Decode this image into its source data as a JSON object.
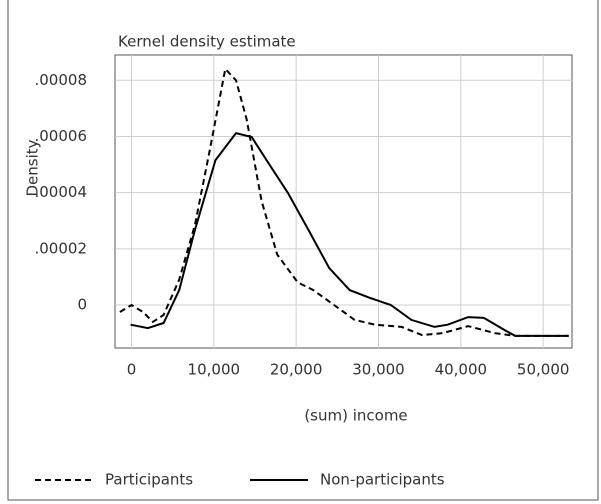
{
  "chart_data": {
    "type": "line",
    "title": "Kernel density estimate",
    "xlabel": "(sum) income",
    "ylabel": "Density",
    "xlim": [
      -2000,
      53500
    ],
    "ylim": [
      -1.53e-05,
      8.9e-05
    ],
    "xticks": [
      0,
      {
        "value": 10000,
        "label": "10,000"
      },
      {
        "value": 20000,
        "label": "20,000"
      },
      {
        "value": 30000,
        "label": "30,000"
      },
      {
        "value": 40000,
        "label": "40,000"
      },
      {
        "value": 50000,
        "label": "50,000"
      }
    ],
    "yticks": [
      0,
      {
        "value": 2e-05,
        "label": ".00002"
      },
      {
        "value": 4e-05,
        "label": ".00004"
      },
      {
        "value": 6e-05,
        "label": ".00006"
      },
      {
        "value": 8e-05,
        "label": ".00008"
      }
    ],
    "grid": true,
    "legend": "bottom",
    "series": [
      {
        "name": "Participants",
        "color": "#000000",
        "line_style": "dashed",
        "x": [
          -1400,
          0,
          1400,
          2600,
          3900,
          5800,
          7700,
          9500,
          11400,
          12700,
          14000,
          15800,
          17700,
          20200,
          22100,
          24600,
          27100,
          29600,
          32800,
          35300,
          37800,
          40900,
          44100,
          46600,
          53100
        ],
        "values": [
          -2.5e-06,
          0,
          -2.5e-06,
          -6e-06,
          -3.5e-06,
          9e-06,
          2.85e-05,
          5.5e-05,
          8.4e-05,
          8e-05,
          6.6e-05,
          3.7e-05,
          1.8e-05,
          8e-06,
          5.3e-06,
          0,
          -5.3e-06,
          -7e-06,
          -7.8e-06,
          -1.07e-05,
          -1e-05,
          -7.5e-06,
          -1e-05,
          -1.1e-05,
          -1.1e-05
        ]
      },
      {
        "name": "Non-participants",
        "color": "#000000",
        "line_style": "solid",
        "x": [
          -100,
          2000,
          3900,
          5800,
          7700,
          10200,
          12700,
          14600,
          16400,
          19000,
          21500,
          24000,
          26500,
          29000,
          31500,
          34000,
          36800,
          38400,
          40900,
          42800,
          45300,
          46600,
          53100
        ],
        "values": [
          -7e-06,
          -8.2e-06,
          -6.4e-06,
          5.3e-06,
          2.67e-05,
          5.16e-05,
          6.12e-05,
          5.98e-05,
          5.16e-05,
          3.99e-05,
          2.67e-05,
          1.32e-05,
          5.3e-06,
          2.5e-06,
          0,
          -5.3e-06,
          -7.8e-06,
          -7e-06,
          -4.3e-06,
          -4.6e-06,
          -8.9e-06,
          -1.1e-05,
          -1.1e-05
        ]
      }
    ]
  }
}
